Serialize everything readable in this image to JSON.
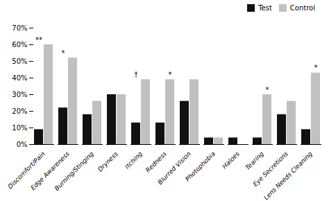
{
  "chart_data": {
    "type": "bar",
    "categories": [
      "Discomfort/Pain",
      "Edge Awareness",
      "Burning/Stinging",
      "Dryness",
      "Itching",
      "Redness",
      "Blurred Vision",
      "Photophobia",
      "Haloes",
      "Tearing",
      "Eye Secretions",
      "Lens Needs Cleaning"
    ],
    "series": [
      {
        "name": "Test",
        "color": "#111111",
        "values": [
          9,
          22,
          18,
          30,
          13,
          13,
          26,
          4,
          4,
          4,
          18,
          9
        ]
      },
      {
        "name": "Control",
        "color": "#c0c0c0",
        "values": [
          60,
          52,
          26,
          30,
          39,
          39,
          39,
          4,
          0,
          30,
          26,
          43
        ]
      }
    ],
    "ylim": [
      0,
      70
    ],
    "yticks": [
      {
        "value": 0,
        "label": "0%"
      },
      {
        "value": 10,
        "label": "10%"
      },
      {
        "value": 20,
        "label": "20%"
      },
      {
        "value": 30,
        "label": "30%"
      },
      {
        "value": 40,
        "label": "40%"
      },
      {
        "value": 50,
        "label": "50%"
      },
      {
        "value": 60,
        "label": "60%"
      },
      {
        "value": 70,
        "label": "70%"
      }
    ],
    "annotations": [
      {
        "text": "**",
        "category": "Discomfort/Pain",
        "series": "Test"
      },
      {
        "text": "*",
        "category": "Edge Awareness",
        "series": "Test"
      },
      {
        "text": "†",
        "category": "Itching",
        "series": "Test"
      },
      {
        "text": "*",
        "category": "Redness",
        "series": "Control"
      },
      {
        "text": "*",
        "category": "Tearing",
        "series": "Control"
      },
      {
        "text": "*",
        "category": "Lens Needs Cleaning",
        "series": "Control"
      }
    ],
    "legend": "upper right",
    "grid": false
  }
}
